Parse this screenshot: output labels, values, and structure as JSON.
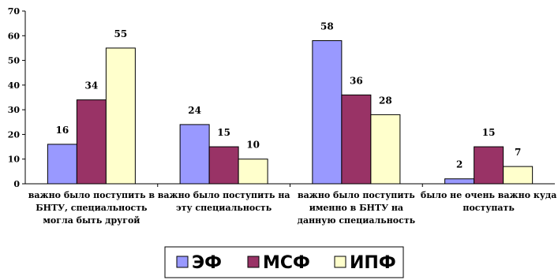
{
  "chart_data": {
    "type": "bar",
    "categories": [
      [
        "важно было поступить в",
        "БНТУ, специальность",
        "могла быть  другой"
      ],
      [
        "важно было поступить на",
        "эту специальность"
      ],
      [
        "важно было поступить",
        "именно в БНТУ на",
        "данную специальность"
      ],
      [
        "было не очень важно куда",
        "поступать"
      ]
    ],
    "series": [
      {
        "name": "ЭФ",
        "values": [
          16,
          24,
          58,
          2
        ],
        "color": "#9999ff"
      },
      {
        "name": "МСФ",
        "values": [
          34,
          15,
          36,
          15
        ],
        "color": "#993366"
      },
      {
        "name": "ИПФ",
        "values": [
          55,
          10,
          28,
          7
        ],
        "color": "#ffffcc"
      }
    ],
    "ylim": [
      0,
      70
    ],
    "yticks": [
      0,
      10,
      20,
      30,
      40,
      50,
      60,
      70
    ],
    "grid": false,
    "legend": "bottom"
  }
}
